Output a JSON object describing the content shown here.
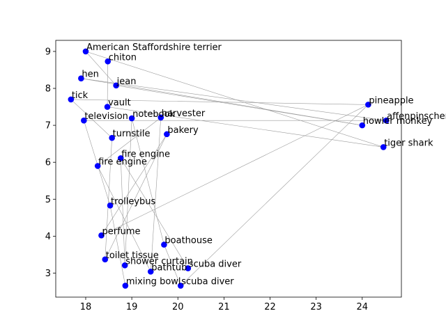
{
  "chart_data": {
    "type": "scatter",
    "title": "",
    "xlabel": "",
    "ylabel": "",
    "xlim": [
      17.35,
      24.85
    ],
    "ylim": [
      2.35,
      9.3
    ],
    "xticks": [
      18,
      19,
      20,
      21,
      22,
      23,
      24
    ],
    "yticks": [
      3,
      4,
      5,
      6,
      7,
      8,
      9
    ],
    "grid": false,
    "legend": "none",
    "marker_color": "#0000ff",
    "edge_color": "#9a9a9a",
    "points": [
      {
        "label": "American Staffordshire terrier",
        "x": 18.0,
        "y": 9.0
      },
      {
        "label": "chiton",
        "x": 18.48,
        "y": 8.73
      },
      {
        "label": "hen",
        "x": 17.9,
        "y": 8.27
      },
      {
        "label": "jean",
        "x": 18.66,
        "y": 8.08
      },
      {
        "label": "tick",
        "x": 17.68,
        "y": 7.7
      },
      {
        "label": "vault",
        "x": 18.47,
        "y": 7.5
      },
      {
        "label": "television",
        "x": 17.96,
        "y": 7.13
      },
      {
        "label": "notebook",
        "x": 19.0,
        "y": 7.19
      },
      {
        "label": "harvester",
        "x": 19.63,
        "y": 7.21
      },
      {
        "label": "bakery",
        "x": 19.76,
        "y": 6.76
      },
      {
        "label": "turnstile",
        "x": 18.57,
        "y": 6.66
      },
      {
        "label": "fire engine",
        "x": 18.76,
        "y": 6.11
      },
      {
        "label": "fire engine",
        "x": 18.26,
        "y": 5.9
      },
      {
        "label": "trolleybus",
        "x": 18.53,
        "y": 4.83
      },
      {
        "label": "perfume",
        "x": 18.34,
        "y": 4.02
      },
      {
        "label": "boathouse",
        "x": 19.7,
        "y": 3.77
      },
      {
        "label": "toilet tissue",
        "x": 18.42,
        "y": 3.37
      },
      {
        "label": "shower curtain",
        "x": 18.85,
        "y": 3.21
      },
      {
        "label": "bathtub",
        "x": 19.41,
        "y": 3.04
      },
      {
        "label": "scuba diver",
        "x": 20.22,
        "y": 3.13
      },
      {
        "label": "mixing bowl",
        "x": 18.86,
        "y": 2.66
      },
      {
        "label": "scuba diver",
        "x": 20.06,
        "y": 2.66
      },
      {
        "label": "pineapple",
        "x": 24.13,
        "y": 7.56
      },
      {
        "label": "affenpinscher",
        "x": 24.52,
        "y": 7.13
      },
      {
        "label": "howler monkey",
        "x": 24.0,
        "y": 7.0
      },
      {
        "label": "tiger shark",
        "x": 24.46,
        "y": 6.41
      }
    ],
    "edges": [
      [
        0,
        25
      ],
      [
        0,
        3
      ],
      [
        2,
        24
      ],
      [
        2,
        23
      ],
      [
        4,
        22
      ],
      [
        4,
        10
      ],
      [
        1,
        5
      ],
      [
        3,
        24
      ],
      [
        5,
        25
      ],
      [
        6,
        13
      ],
      [
        6,
        23
      ],
      [
        7,
        15
      ],
      [
        7,
        17
      ],
      [
        8,
        18
      ],
      [
        9,
        14
      ],
      [
        10,
        16
      ],
      [
        11,
        19
      ],
      [
        12,
        8
      ],
      [
        13,
        20
      ],
      [
        14,
        22
      ],
      [
        16,
        9
      ],
      [
        17,
        11
      ],
      [
        18,
        12
      ],
      [
        21,
        22
      ],
      [
        21,
        15
      ]
    ]
  }
}
